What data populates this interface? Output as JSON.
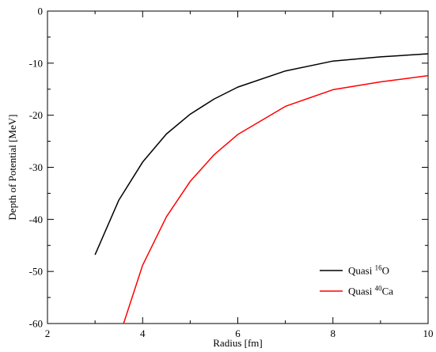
{
  "chart_data": {
    "type": "line",
    "title": "",
    "xlabel": "Radius [fm]",
    "ylabel": "Depth of Potential [MeV]",
    "xlim": [
      2,
      10
    ],
    "ylim": [
      -60,
      0
    ],
    "xticks": [
      2,
      4,
      6,
      8,
      10
    ],
    "yticks": [
      0,
      -10,
      -20,
      -30,
      -40,
      -50,
      -60
    ],
    "grid": false,
    "legend_position": "bottom-right",
    "series": [
      {
        "name_prefix": "Quasi",
        "name_sup": "16",
        "name_suffix": "O",
        "color": "#000000",
        "x": [
          3.0,
          3.5,
          4.0,
          4.5,
          5.0,
          5.5,
          6.0,
          7.0,
          8.0,
          9.0,
          10.0
        ],
        "y": [
          -46.8,
          -36.3,
          -29.0,
          -23.6,
          -19.8,
          -16.9,
          -14.6,
          -11.5,
          -9.6,
          -8.8,
          -8.2
        ]
      },
      {
        "name_prefix": "Quasi",
        "name_sup": "40",
        "name_suffix": "Ca",
        "color": "#ff0000",
        "x": [
          3.6,
          4.0,
          4.5,
          5.0,
          5.5,
          6.0,
          7.0,
          8.0,
          9.0,
          10.0
        ],
        "y": [
          -60.0,
          -48.8,
          -39.5,
          -32.7,
          -27.6,
          -23.7,
          -18.3,
          -15.1,
          -13.6,
          -12.4
        ]
      }
    ]
  }
}
